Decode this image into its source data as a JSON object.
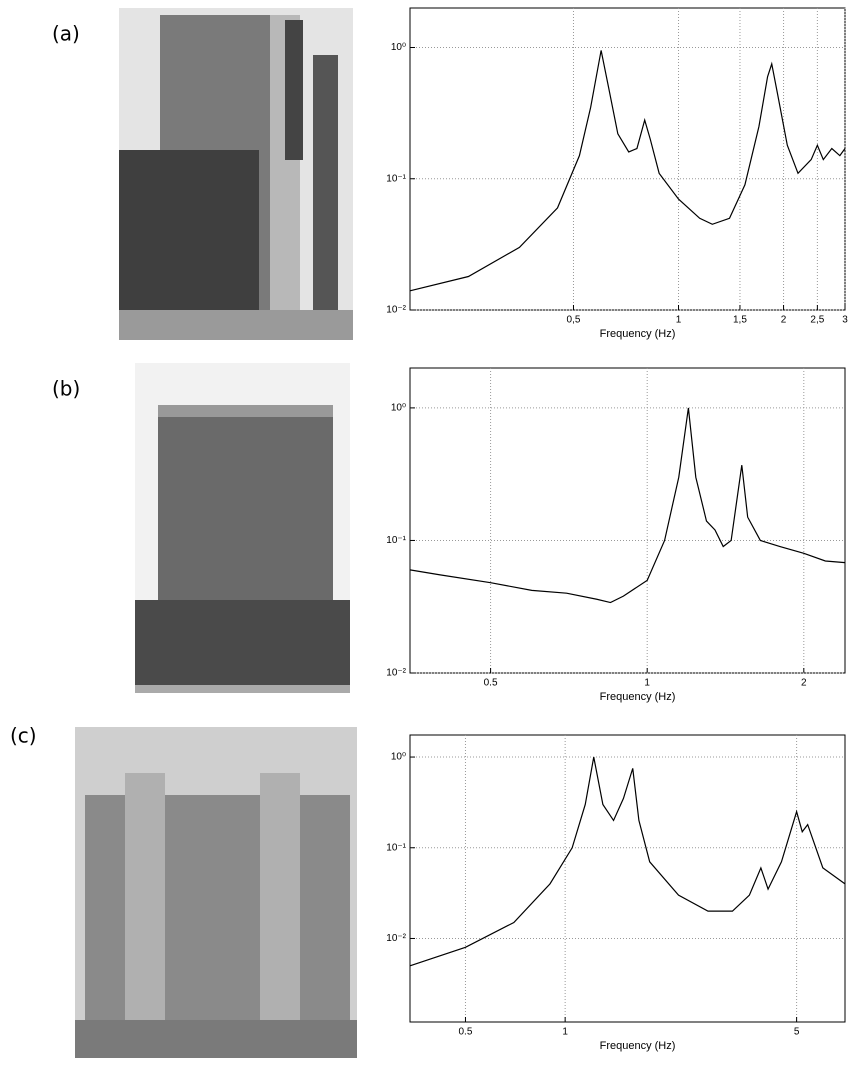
{
  "chart_data": [
    {
      "type": "line",
      "panel": "(a)",
      "xlabel": "Frequency (Hz)",
      "log_x": true,
      "log_y": true,
      "grid": true,
      "color": "#000000",
      "xlim": [
        0.17,
        3
      ],
      "ylim": [
        0.01,
        2
      ],
      "xticks": [
        {
          "value": 0.5,
          "label": "0,5"
        },
        1,
        {
          "value": 1.5,
          "label": "1,5"
        },
        2,
        {
          "value": 2.5,
          "label": "2,5"
        },
        3
      ],
      "yticks": [
        {
          "value": 0.01,
          "label": "10⁻²"
        },
        {
          "value": 0.1,
          "label": "10⁻¹"
        },
        {
          "value": 1,
          "label": "10⁰"
        }
      ],
      "x": [
        0.17,
        0.25,
        0.35,
        0.45,
        0.52,
        0.56,
        0.6,
        0.63,
        0.67,
        0.72,
        0.76,
        0.8,
        0.83,
        0.88,
        1.0,
        1.15,
        1.25,
        1.4,
        1.55,
        1.7,
        1.8,
        1.85,
        1.92,
        2.05,
        2.2,
        2.4,
        2.5,
        2.6,
        2.75,
        2.9,
        3.0
      ],
      "values": [
        0.014,
        0.018,
        0.03,
        0.06,
        0.15,
        0.35,
        0.95,
        0.5,
        0.22,
        0.16,
        0.17,
        0.28,
        0.2,
        0.11,
        0.07,
        0.05,
        0.045,
        0.05,
        0.09,
        0.25,
        0.6,
        0.75,
        0.45,
        0.18,
        0.11,
        0.14,
        0.18,
        0.14,
        0.17,
        0.15,
        0.17
      ]
    },
    {
      "type": "line",
      "panel": "(b)",
      "xlabel": "Frequency (Hz)",
      "log_x": true,
      "log_y": true,
      "grid": true,
      "color": "#000000",
      "xlim": [
        0.35,
        2.4
      ],
      "ylim": [
        0.01,
        2
      ],
      "xticks": [
        0.5,
        1,
        2
      ],
      "yticks": [
        {
          "value": 0.01,
          "label": "10⁻²"
        },
        {
          "value": 0.1,
          "label": "10⁻¹"
        },
        {
          "value": 1,
          "label": "10⁰"
        }
      ],
      "x": [
        0.35,
        0.4,
        0.5,
        0.6,
        0.7,
        0.8,
        0.85,
        0.9,
        1.0,
        1.08,
        1.15,
        1.2,
        1.24,
        1.3,
        1.35,
        1.4,
        1.45,
        1.52,
        1.56,
        1.65,
        1.8,
        2.0,
        2.2,
        2.4
      ],
      "values": [
        0.06,
        0.055,
        0.048,
        0.042,
        0.04,
        0.036,
        0.034,
        0.038,
        0.05,
        0.1,
        0.3,
        1.0,
        0.3,
        0.14,
        0.12,
        0.09,
        0.1,
        0.37,
        0.15,
        0.1,
        0.09,
        0.08,
        0.07,
        0.068
      ]
    },
    {
      "type": "line",
      "panel": "(c)",
      "xlabel": "Frequency (Hz)",
      "log_x": true,
      "log_y": true,
      "grid": true,
      "color": "#000000",
      "xlim": [
        0.34,
        7
      ],
      "ylim": [
        0.0012,
        1.75
      ],
      "xticks": [
        0.5,
        1,
        5
      ],
      "yticks": [
        {
          "value": 0.01,
          "label": "10⁻²"
        },
        {
          "value": 0.1,
          "label": "10⁻¹"
        },
        {
          "value": 1,
          "label": "10⁰"
        }
      ],
      "x": [
        0.34,
        0.5,
        0.7,
        0.9,
        1.05,
        1.15,
        1.22,
        1.3,
        1.4,
        1.5,
        1.6,
        1.67,
        1.8,
        2.2,
        2.7,
        3.2,
        3.6,
        3.9,
        4.1,
        4.5,
        5.0,
        5.2,
        5.4,
        6.0,
        7.0
      ],
      "values": [
        0.005,
        0.008,
        0.015,
        0.04,
        0.1,
        0.3,
        1.0,
        0.3,
        0.2,
        0.35,
        0.75,
        0.2,
        0.07,
        0.03,
        0.02,
        0.02,
        0.03,
        0.06,
        0.035,
        0.07,
        0.25,
        0.15,
        0.18,
        0.06,
        0.04
      ]
    }
  ]
}
